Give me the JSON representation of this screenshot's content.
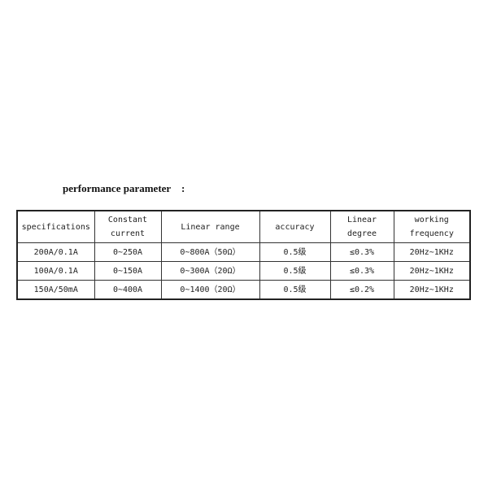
{
  "title": "performance parameter    :",
  "table": {
    "headers": [
      "specifications",
      "Constant\ncurrent",
      "Linear range",
      "accuracy",
      "Linear\ndegree",
      "working\nfrequency"
    ],
    "rows": [
      [
        "200A/0.1A",
        "0~250A",
        "0~800A（50Ω）",
        "0.5级",
        "≤0.3%",
        "20Hz~1KHz"
      ],
      [
        "100A/0.1A",
        "0~150A",
        "0~300A（20Ω）",
        "0.5级",
        "≤0.3%",
        "20Hz~1KHz"
      ],
      [
        "150A/50mA",
        "0~400A",
        "0~1400（20Ω）",
        "0.5级",
        "≤0.2%",
        "20Hz~1KHz"
      ]
    ]
  }
}
